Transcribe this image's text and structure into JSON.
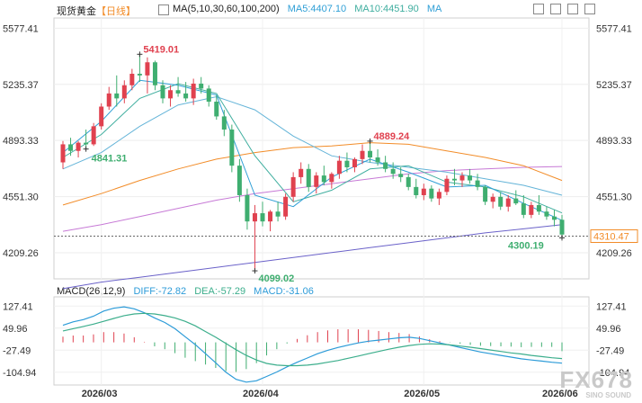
{
  "header": {
    "instrument": "现货黄金",
    "period": "【日线】",
    "ma_label": "MA(5,10,30,60,100,200)",
    "ma5": "MA5:4407.10",
    "ma10": "MA10:4451.90",
    "ma_extra": "MA",
    "macd_label": "MACD(26,12,9)",
    "diff": "DIFF:-72.82",
    "dea": "DEA:-57.29",
    "macd": "MACD:-31.06"
  },
  "watermark": {
    "text": "FX678",
    "sub": "SINO SOUND"
  },
  "colors": {
    "up": "#e0414f",
    "down": "#3fae70",
    "ma5": "#2f9fd6",
    "ma10": "#3fae9f",
    "ma30": "#64b4d8",
    "ma60": "#f28c28",
    "ma100": "#c77ad6",
    "ma200": "#6b62c9",
    "diff": "#2c9bd8",
    "dea": "#3cae8c"
  },
  "chart_data": [
    {
      "type": "candlestick",
      "title": "现货黄金【日线】",
      "y_ticks": [
        "5577.41",
        "5235.37",
        "4893.33",
        "4551.30",
        "4209.26"
      ],
      "ylim": [
        4050,
        5640
      ],
      "x_ticks": [
        "2026/03",
        "2026/04",
        "2026/05",
        "2026/06"
      ],
      "annotations": [
        {
          "label": "5419.01",
          "x": "2026-03-02",
          "value": 5419.01,
          "kind": "high"
        },
        {
          "label": "4841.31",
          "x": "2026-02-13",
          "value": 4841.31,
          "kind": "low"
        },
        {
          "label": "4889.24",
          "x": "2026-04-16",
          "value": 4889.24,
          "kind": "high"
        },
        {
          "label": "4099.02",
          "x": "2026-03-23",
          "value": 4099.02,
          "kind": "low"
        },
        {
          "label": "4300.19",
          "x": "2026-06-01",
          "value": 4300.19,
          "kind": "low"
        }
      ],
      "current_price": "4310.47",
      "ohlc": [
        [
          4760,
          4890,
          4720,
          4870
        ],
        [
          4870,
          4910,
          4800,
          4830
        ],
        [
          4830,
          4890,
          4790,
          4880
        ],
        [
          4880,
          4960,
          4841,
          4870
        ],
        [
          4870,
          5000,
          4860,
          4980
        ],
        [
          4980,
          5120,
          4960,
          5100
        ],
        [
          5100,
          5220,
          5080,
          5180
        ],
        [
          5180,
          5290,
          5100,
          5150
        ],
        [
          5150,
          5260,
          5120,
          5230
        ],
        [
          5230,
          5330,
          5200,
          5300
        ],
        [
          5300,
          5419,
          5250,
          5290
        ],
        [
          5290,
          5400,
          5180,
          5370
        ],
        [
          5370,
          5380,
          5200,
          5230
        ],
        [
          5230,
          5260,
          5120,
          5150
        ],
        [
          5150,
          5230,
          5100,
          5200
        ],
        [
          5200,
          5280,
          5160,
          5180
        ],
        [
          5180,
          5250,
          5130,
          5150
        ],
        [
          5150,
          5270,
          5110,
          5240
        ],
        [
          5240,
          5280,
          5180,
          5210
        ],
        [
          5210,
          5230,
          5100,
          5130
        ],
        [
          5130,
          5170,
          5020,
          5040
        ],
        [
          5040,
          5080,
          4920,
          4960
        ],
        [
          4960,
          4990,
          4700,
          4740
        ],
        [
          4740,
          4780,
          4520,
          4560
        ],
        [
          4560,
          4600,
          4350,
          4400
        ],
        [
          4400,
          4500,
          4099,
          4450
        ],
        [
          4450,
          4520,
          4370,
          4400
        ],
        [
          4400,
          4470,
          4340,
          4460
        ],
        [
          4460,
          4520,
          4400,
          4430
        ],
        [
          4430,
          4570,
          4410,
          4550
        ],
        [
          4550,
          4700,
          4520,
          4670
        ],
        [
          4670,
          4760,
          4630,
          4720
        ],
        [
          4720,
          4750,
          4580,
          4610
        ],
        [
          4610,
          4700,
          4570,
          4680
        ],
        [
          4680,
          4740,
          4620,
          4640
        ],
        [
          4640,
          4700,
          4600,
          4690
        ],
        [
          4690,
          4800,
          4660,
          4770
        ],
        [
          4770,
          4820,
          4700,
          4730
        ],
        [
          4730,
          4790,
          4700,
          4780
        ],
        [
          4780,
          4870,
          4750,
          4830
        ],
        [
          4830,
          4889,
          4760,
          4790
        ],
        [
          4790,
          4840,
          4740,
          4760
        ],
        [
          4760,
          4800,
          4700,
          4720
        ],
        [
          4720,
          4760,
          4660,
          4690
        ],
        [
          4690,
          4730,
          4640,
          4670
        ],
        [
          4670,
          4690,
          4590,
          4610
        ],
        [
          4610,
          4660,
          4540,
          4560
        ],
        [
          4560,
          4630,
          4530,
          4600
        ],
        [
          4600,
          4620,
          4520,
          4540
        ],
        [
          4540,
          4600,
          4500,
          4580
        ],
        [
          4580,
          4680,
          4560,
          4660
        ],
        [
          4660,
          4720,
          4620,
          4650
        ],
        [
          4650,
          4700,
          4610,
          4680
        ],
        [
          4680,
          4720,
          4630,
          4650
        ],
        [
          4650,
          4690,
          4590,
          4610
        ],
        [
          4610,
          4620,
          4500,
          4520
        ],
        [
          4520,
          4570,
          4480,
          4550
        ],
        [
          4550,
          4580,
          4470,
          4490
        ],
        [
          4490,
          4560,
          4460,
          4540
        ],
        [
          4540,
          4590,
          4500,
          4510
        ],
        [
          4510,
          4560,
          4420,
          4440
        ],
        [
          4440,
          4520,
          4420,
          4500
        ],
        [
          4500,
          4560,
          4440,
          4460
        ],
        [
          4460,
          4490,
          4410,
          4430
        ],
        [
          4430,
          4470,
          4370,
          4410
        ],
        [
          4410,
          4440,
          4300,
          4320
        ]
      ],
      "ma": {
        "ma5": [
          [
            0,
            4820
          ],
          [
            5,
            5010
          ],
          [
            10,
            5260
          ],
          [
            15,
            5230
          ],
          [
            20,
            5170
          ],
          [
            25,
            4560
          ],
          [
            30,
            4490
          ],
          [
            35,
            4670
          ],
          [
            40,
            4780
          ],
          [
            45,
            4700
          ],
          [
            50,
            4610
          ],
          [
            55,
            4620
          ],
          [
            60,
            4510
          ],
          [
            65,
            4407
          ]
        ],
        "ma10": [
          [
            0,
            4790
          ],
          [
            5,
            4930
          ],
          [
            10,
            5150
          ],
          [
            15,
            5240
          ],
          [
            20,
            5180
          ],
          [
            25,
            4800
          ],
          [
            30,
            4520
          ],
          [
            35,
            4590
          ],
          [
            40,
            4720
          ],
          [
            45,
            4740
          ],
          [
            50,
            4640
          ],
          [
            55,
            4610
          ],
          [
            60,
            4550
          ],
          [
            65,
            4452
          ]
        ],
        "ma30": [
          [
            0,
            4720
          ],
          [
            5,
            4820
          ],
          [
            10,
            4980
          ],
          [
            15,
            5110
          ],
          [
            20,
            5160
          ],
          [
            25,
            5080
          ],
          [
            30,
            4920
          ],
          [
            35,
            4800
          ],
          [
            40,
            4760
          ],
          [
            45,
            4730
          ],
          [
            50,
            4700
          ],
          [
            55,
            4660
          ],
          [
            60,
            4620
          ],
          [
            65,
            4560
          ]
        ],
        "ma60": [
          [
            0,
            4500
          ],
          [
            5,
            4570
          ],
          [
            10,
            4650
          ],
          [
            15,
            4720
          ],
          [
            20,
            4780
          ],
          [
            25,
            4820
          ],
          [
            30,
            4850
          ],
          [
            35,
            4860
          ],
          [
            40,
            4880
          ],
          [
            45,
            4870
          ],
          [
            50,
            4830
          ],
          [
            55,
            4790
          ],
          [
            60,
            4740
          ],
          [
            65,
            4650
          ]
        ],
        "ma100": [
          [
            0,
            4340
          ],
          [
            5,
            4380
          ],
          [
            10,
            4430
          ],
          [
            15,
            4480
          ],
          [
            20,
            4530
          ],
          [
            25,
            4570
          ],
          [
            30,
            4600
          ],
          [
            35,
            4630
          ],
          [
            40,
            4660
          ],
          [
            45,
            4690
          ],
          [
            50,
            4710
          ],
          [
            55,
            4720
          ],
          [
            60,
            4730
          ],
          [
            65,
            4735
          ]
        ],
        "ma200": [
          [
            0,
            3990
          ],
          [
            5,
            4030
          ],
          [
            10,
            4060
          ],
          [
            15,
            4090
          ],
          [
            20,
            4120
          ],
          [
            25,
            4150
          ],
          [
            30,
            4180
          ],
          [
            35,
            4210
          ],
          [
            40,
            4240
          ],
          [
            45,
            4270
          ],
          [
            50,
            4300
          ],
          [
            55,
            4330
          ],
          [
            60,
            4355
          ],
          [
            65,
            4380
          ]
        ]
      }
    },
    {
      "type": "macd",
      "title": "MACD(26,12,9)",
      "y_ticks": [
        "127.41",
        "49.96",
        "-27.49",
        "-104.94"
      ],
      "ylim": [
        -150,
        160
      ],
      "diff": [
        60,
        72,
        80,
        92,
        110,
        120,
        125,
        118,
        104,
        86,
        70,
        48,
        20,
        -8,
        -40,
        -72,
        -105,
        -130,
        -140,
        -135,
        -120,
        -104,
        -86,
        -70,
        -55,
        -40,
        -28,
        -18,
        -10,
        -2,
        4,
        8,
        12,
        16,
        18,
        14,
        6,
        -2,
        -10,
        -18,
        -26,
        -34,
        -40,
        -46,
        -52,
        -58,
        -62,
        -66,
        -70,
        -73
      ],
      "dea": [
        40,
        48,
        56,
        64,
        74,
        84,
        94,
        100,
        102,
        100,
        94,
        86,
        74,
        58,
        38,
        18,
        -4,
        -26,
        -46,
        -62,
        -74,
        -80,
        -82,
        -82,
        -80,
        -76,
        -70,
        -64,
        -56,
        -48,
        -40,
        -32,
        -24,
        -17,
        -11,
        -7,
        -5,
        -6,
        -9,
        -13,
        -17,
        -22,
        -27,
        -32,
        -37,
        -41,
        -46,
        -50,
        -54,
        -57
      ],
      "histogram": [
        20,
        24,
        24,
        28,
        36,
        36,
        31,
        18,
        2,
        -14,
        -24,
        -38,
        -54,
        -66,
        -78,
        -90,
        -101,
        -104,
        -94,
        -73,
        -46,
        -24,
        -4,
        12,
        25,
        36,
        42,
        46,
        46,
        46,
        44,
        40,
        36,
        33,
        29,
        21,
        11,
        4,
        -1,
        -5,
        -9,
        -12,
        -13,
        -14,
        -15,
        -17,
        -16,
        -16,
        -16,
        -31
      ]
    }
  ]
}
